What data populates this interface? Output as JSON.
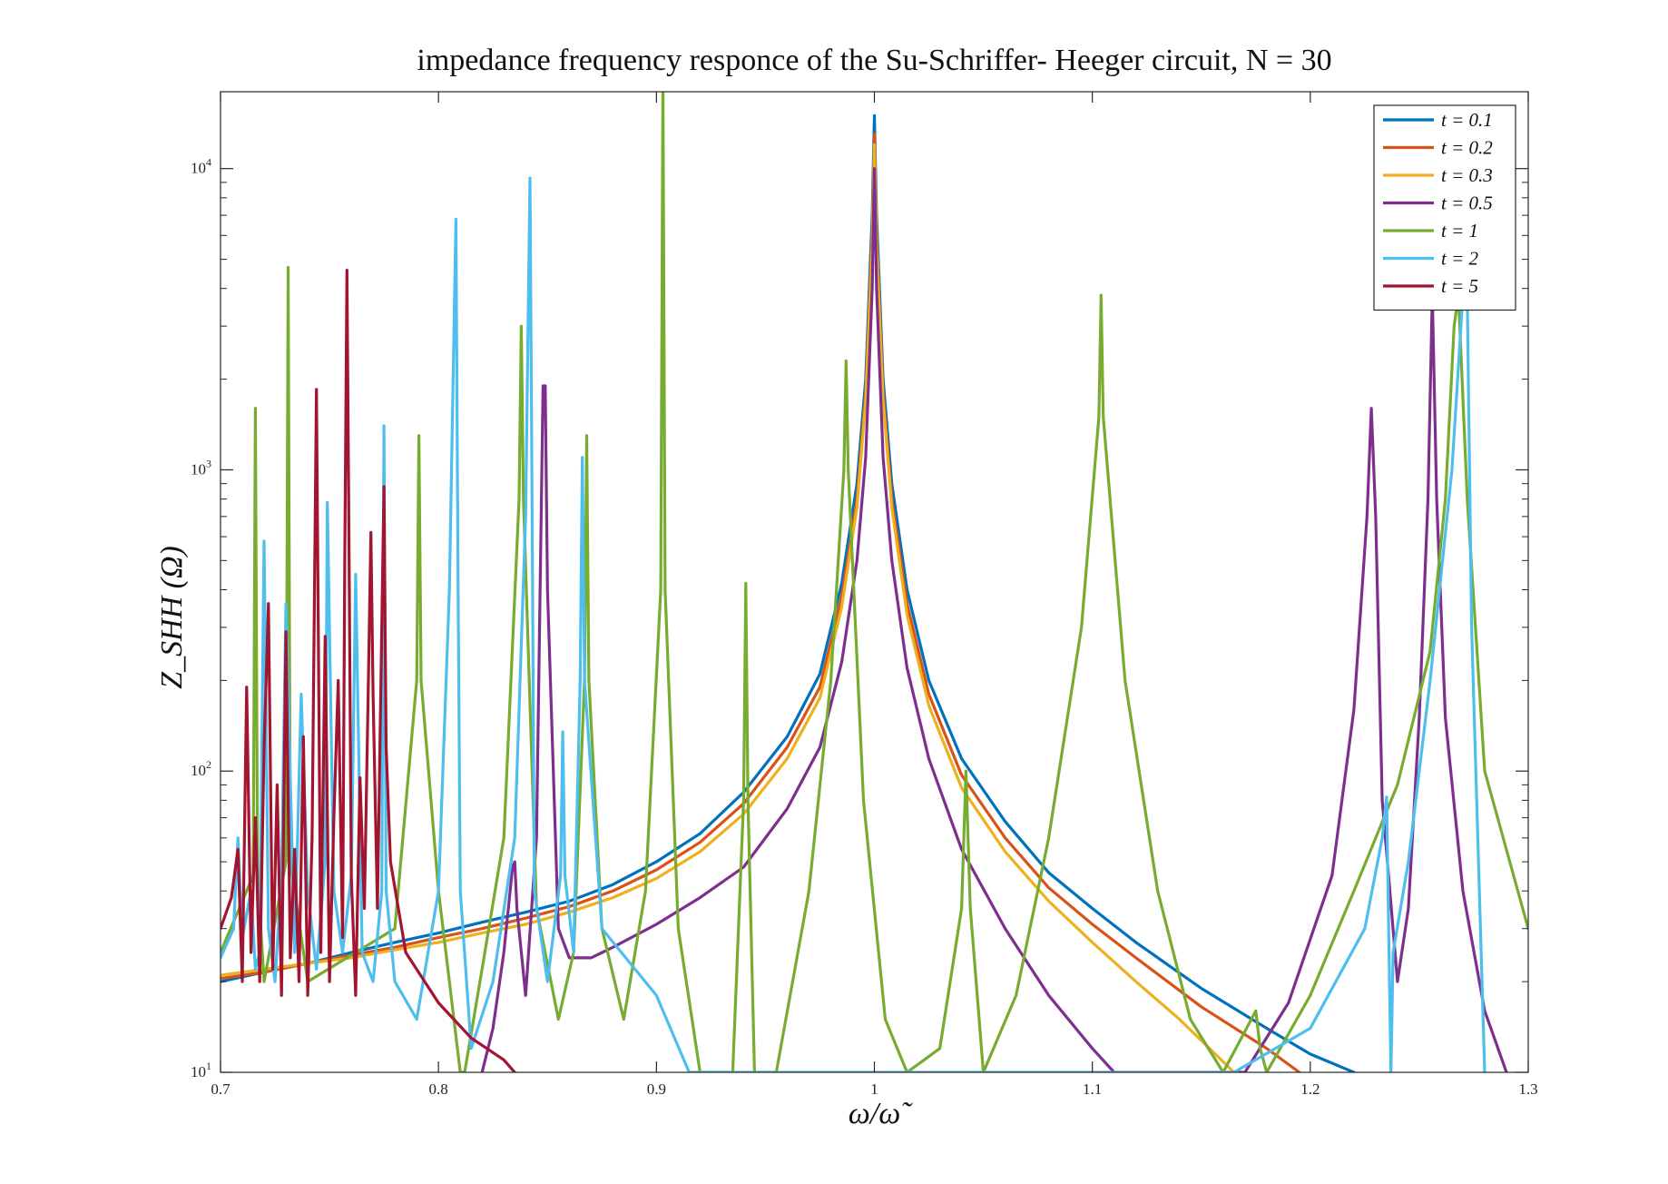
{
  "chart_data": {
    "type": "line",
    "title": "impedance frequency responce of the Su-Schriffer- Heeger circuit, N = 30",
    "xlabel": "ω/ω̃",
    "ylabel": "Z_SHH (Ω)",
    "xlim": [
      0.7,
      1.3
    ],
    "ylim": [
      10,
      18000
    ],
    "y_scale": "log",
    "grid": false,
    "legend_position": "top-right",
    "x_ticks": [
      "0.7",
      "0.8",
      "0.9",
      "1",
      "1.1",
      "1.2",
      "1.3"
    ],
    "y_ticks": [
      {
        "base": "10",
        "exp": "1"
      },
      {
        "base": "10",
        "exp": "2"
      },
      {
        "base": "10",
        "exp": "3"
      },
      {
        "base": "10",
        "exp": "4"
      }
    ],
    "series": [
      {
        "name": "t = 0.1",
        "color": "#0072BD",
        "x": [
          0.7,
          0.72,
          0.74,
          0.76,
          0.78,
          0.8,
          0.82,
          0.84,
          0.86,
          0.88,
          0.9,
          0.92,
          0.94,
          0.96,
          0.975,
          0.985,
          0.992,
          0.996,
          0.999,
          1.0,
          1.001,
          1.004,
          1.008,
          1.015,
          1.025,
          1.04,
          1.06,
          1.08,
          1.1,
          1.12,
          1.15,
          1.18,
          1.2,
          1.22
        ],
        "y": [
          20,
          21.5,
          23,
          25,
          27,
          29,
          31.5,
          34,
          37,
          42,
          50,
          62,
          85,
          130,
          210,
          420,
          900,
          2000,
          7000,
          15000,
          7000,
          2000,
          900,
          400,
          200,
          110,
          68,
          46,
          35,
          27,
          19,
          14,
          11.5,
          10
        ]
      },
      {
        "name": "t = 0.2",
        "color": "#D95319",
        "x": [
          0.7,
          0.72,
          0.74,
          0.76,
          0.78,
          0.8,
          0.82,
          0.84,
          0.86,
          0.88,
          0.9,
          0.92,
          0.94,
          0.96,
          0.975,
          0.985,
          0.992,
          0.996,
          0.999,
          1.0,
          1.001,
          1.004,
          1.008,
          1.015,
          1.025,
          1.04,
          1.06,
          1.08,
          1.1,
          1.12,
          1.15,
          1.18,
          1.195
        ],
        "y": [
          20.5,
          21.5,
          23,
          24.5,
          26,
          28,
          30,
          32.5,
          35.5,
          40,
          47,
          58,
          78,
          120,
          190,
          380,
          800,
          1800,
          6000,
          13000,
          6000,
          1800,
          800,
          360,
          180,
          97,
          60,
          41,
          31,
          24,
          16.5,
          12,
          10
        ]
      },
      {
        "name": "t = 0.3",
        "color": "#EDB120",
        "x": [
          0.7,
          0.72,
          0.74,
          0.76,
          0.78,
          0.8,
          0.82,
          0.84,
          0.86,
          0.88,
          0.9,
          0.92,
          0.94,
          0.96,
          0.975,
          0.985,
          0.992,
          0.996,
          0.999,
          1.0,
          1.001,
          1.004,
          1.008,
          1.015,
          1.025,
          1.04,
          1.06,
          1.08,
          1.1,
          1.12,
          1.14,
          1.165
        ],
        "y": [
          21,
          22,
          23,
          24,
          25.5,
          27,
          29,
          31,
          34,
          38,
          44,
          54,
          72,
          110,
          175,
          350,
          750,
          1700,
          5500,
          12000,
          5500,
          1700,
          750,
          330,
          165,
          88,
          54,
          37,
          27,
          20,
          15,
          10
        ]
      },
      {
        "name": "t = 0.5",
        "color": "#7E2F8E",
        "x": [
          0.82,
          0.825,
          0.83,
          0.834,
          0.835,
          0.836,
          0.84,
          0.845,
          0.848,
          0.849,
          0.85,
          0.855,
          0.86,
          0.87,
          0.88,
          0.9,
          0.92,
          0.94,
          0.96,
          0.975,
          0.985,
          0.992,
          0.996,
          0.999,
          1.0,
          1.001,
          1.004,
          1.008,
          1.015,
          1.025,
          1.04,
          1.06,
          1.08,
          1.1,
          1.11,
          1.17,
          1.19,
          1.21,
          1.22,
          1.226,
          1.228,
          1.23,
          1.233,
          1.24,
          1.245,
          1.25,
          1.254,
          1.256,
          1.258,
          1.262,
          1.27,
          1.28,
          1.29
        ],
        "y": [
          10,
          14,
          25,
          48,
          50,
          35,
          18,
          60,
          1900,
          1900,
          400,
          30,
          24,
          24,
          26,
          31,
          38,
          48,
          75,
          120,
          230,
          500,
          1100,
          4000,
          10000,
          4000,
          1100,
          500,
          220,
          110,
          55,
          30,
          18,
          12,
          10,
          10,
          17,
          45,
          160,
          700,
          1600,
          700,
          80,
          20,
          35,
          150,
          800,
          3800,
          800,
          150,
          40,
          16,
          10
        ]
      },
      {
        "name": "t = 1",
        "color": "#77AC30",
        "x": [
          0.7,
          0.715,
          0.716,
          0.717,
          0.72,
          0.73,
          0.731,
          0.732,
          0.74,
          0.78,
          0.79,
          0.791,
          0.792,
          0.8,
          0.81,
          0.812,
          0.82,
          0.83,
          0.837,
          0.838,
          0.839,
          0.845,
          0.855,
          0.862,
          0.867,
          0.868,
          0.869,
          0.875,
          0.885,
          0.895,
          0.902,
          0.903,
          0.904,
          0.91,
          0.92,
          0.935,
          0.94,
          0.941,
          0.942,
          0.945,
          0.955,
          0.97,
          0.98,
          0.986,
          0.987,
          0.988,
          0.995,
          1.005,
          1.015,
          1.03,
          1.04,
          1.042,
          1.044,
          1.05,
          1.065,
          1.08,
          1.095,
          1.103,
          1.104,
          1.105,
          1.115,
          1.13,
          1.145,
          1.16,
          1.175,
          1.177,
          1.18,
          1.2,
          1.22,
          1.24,
          1.255,
          1.262,
          1.266,
          1.268,
          1.272,
          1.28,
          1.3
        ],
        "y": [
          25,
          45,
          1600,
          45,
          20,
          50,
          4700,
          50,
          20,
          30,
          200,
          1300,
          200,
          40,
          10,
          10,
          22,
          60,
          800,
          3000,
          800,
          35,
          15,
          25,
          200,
          1300,
          200,
          30,
          15,
          40,
          400,
          20000,
          400,
          30,
          10,
          10,
          80,
          420,
          80,
          10,
          10,
          40,
          200,
          1000,
          2300,
          1000,
          80,
          15,
          10,
          12,
          35,
          100,
          35,
          10,
          18,
          60,
          300,
          1500,
          3800,
          1500,
          200,
          40,
          15,
          10,
          16,
          12,
          10,
          18,
          40,
          90,
          250,
          800,
          3000,
          3800,
          800,
          100,
          30
        ]
      },
      {
        "name": "t = 2",
        "color": "#4DBEEE",
        "x": [
          0.7,
          0.706,
          0.708,
          0.71,
          0.714,
          0.716,
          0.718,
          0.72,
          0.722,
          0.725,
          0.728,
          0.73,
          0.734,
          0.737,
          0.74,
          0.744,
          0.748,
          0.749,
          0.752,
          0.756,
          0.76,
          0.762,
          0.765,
          0.77,
          0.774,
          0.775,
          0.776,
          0.78,
          0.79,
          0.8,
          0.805,
          0.808,
          0.809,
          0.81,
          0.815,
          0.825,
          0.835,
          0.84,
          0.842,
          0.843,
          0.844,
          0.85,
          0.856,
          0.857,
          0.858,
          0.862,
          0.865,
          0.866,
          0.867,
          0.875,
          0.9,
          0.915,
          1.165,
          1.2,
          1.225,
          1.233,
          1.235,
          1.237,
          1.238,
          1.245,
          1.255,
          1.265,
          1.27,
          1.272,
          1.274,
          1.28
        ],
        "y": [
          24,
          30,
          60,
          28,
          40,
          22,
          25,
          580,
          30,
          20,
          45,
          360,
          25,
          180,
          40,
          22,
          50,
          780,
          40,
          25,
          45,
          450,
          25,
          20,
          40,
          1400,
          40,
          20,
          15,
          40,
          400,
          6800,
          400,
          40,
          12,
          20,
          60,
          700,
          9300,
          700,
          40,
          20,
          45,
          135,
          45,
          25,
          200,
          1100,
          200,
          30,
          18,
          10,
          10,
          14,
          30,
          60,
          82,
          10,
          25,
          50,
          200,
          1000,
          3800,
          3800,
          300,
          10
        ]
      },
      {
        "name": "t = 5",
        "color": "#A2142F",
        "x": [
          0.7,
          0.705,
          0.708,
          0.71,
          0.712,
          0.714,
          0.716,
          0.718,
          0.72,
          0.722,
          0.724,
          0.726,
          0.728,
          0.73,
          0.732,
          0.734,
          0.736,
          0.738,
          0.74,
          0.742,
          0.744,
          0.746,
          0.748,
          0.75,
          0.752,
          0.754,
          0.756,
          0.757,
          0.758,
          0.759,
          0.76,
          0.762,
          0.764,
          0.766,
          0.768,
          0.769,
          0.77,
          0.772,
          0.774,
          0.775,
          0.776,
          0.778,
          0.785,
          0.8,
          0.815,
          0.83,
          0.835
        ],
        "y": [
          30,
          38,
          55,
          20,
          190,
          25,
          70,
          20,
          120,
          360,
          22,
          90,
          18,
          290,
          24,
          55,
          20,
          130,
          18,
          60,
          1850,
          25,
          280,
          20,
          70,
          200,
          28,
          500,
          4600,
          500,
          45,
          18,
          95,
          35,
          230,
          620,
          180,
          35,
          300,
          880,
          120,
          50,
          25,
          17,
          13,
          11,
          10
        ]
      }
    ]
  }
}
